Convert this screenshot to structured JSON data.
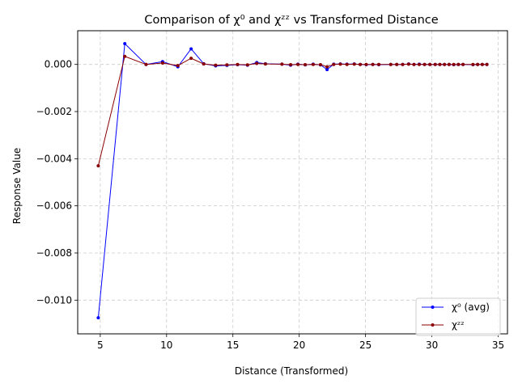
{
  "chart_data": {
    "type": "line",
    "title": "Comparison of χ⁰ and χᶻᶻ vs Transformed Distance",
    "xlabel": "Distance (Transformed)",
    "ylabel": "Response Value",
    "xlim": [
      3.3,
      35.7
    ],
    "ylim": [
      -0.01143,
      0.00143
    ],
    "xticks": [
      5,
      10,
      15,
      20,
      25,
      30,
      35
    ],
    "xtick_labels": [
      "5",
      "10",
      "15",
      "20",
      "25",
      "30",
      "35"
    ],
    "yticks": [
      -0.01,
      -0.008,
      -0.006,
      -0.004,
      -0.002,
      0.0
    ],
    "ytick_labels": [
      "−0.010",
      "−0.008",
      "−0.006",
      "−0.004",
      "−0.002",
      "0.000"
    ],
    "grid": true,
    "legend_position": "lower-right",
    "series": [
      {
        "name": "χ⁰ (avg)",
        "color": "#0000ff",
        "marker_color": "#0000ff",
        "x": [
          4.85,
          6.85,
          8.45,
          9.7,
          10.85,
          11.85,
          12.8,
          13.7,
          14.55,
          15.35,
          16.1,
          16.8,
          17.45,
          18.7,
          19.35,
          19.9,
          20.45,
          21.05,
          21.6,
          22.1,
          22.6,
          23.1,
          23.6,
          24.15,
          24.6,
          25.05,
          25.55,
          26.0,
          26.9,
          27.35,
          27.8,
          28.25,
          28.65,
          29.05,
          29.45,
          29.85,
          30.25,
          30.6,
          30.95,
          31.3,
          31.65,
          32.0,
          32.35,
          33.1,
          33.45,
          33.8,
          34.15
        ],
        "y": [
          -0.01075,
          0.00088,
          0.0,
          0.00012,
          -0.0001,
          0.00066,
          3e-05,
          -6e-05,
          -4e-05,
          -1e-05,
          -3e-05,
          8e-05,
          3e-05,
          1e-05,
          -3e-05,
          1e-05,
          -2e-05,
          1e-05,
          -2e-05,
          -0.00022,
          1e-05,
          2e-05,
          1e-05,
          2e-05,
          0.0,
          -1e-05,
          0.0,
          -1e-05,
          0.0,
          0.0,
          0.0,
          2e-05,
          0.0,
          1e-05,
          0.0,
          0.0,
          0.0,
          0.0,
          0.0,
          0.0,
          -1e-05,
          0.0,
          0.0,
          -1e-05,
          0.0,
          0.0,
          0.0
        ]
      },
      {
        "name": "χᶻᶻ",
        "color": "#8b0000",
        "marker_color": "#8b0000",
        "x": [
          4.85,
          6.85,
          8.45,
          9.7,
          10.85,
          11.85,
          12.8,
          13.7,
          14.55,
          15.35,
          16.1,
          16.8,
          17.45,
          18.7,
          19.35,
          19.9,
          20.45,
          21.05,
          21.6,
          22.1,
          22.6,
          23.1,
          23.6,
          24.15,
          24.6,
          25.05,
          25.55,
          26.0,
          26.9,
          27.35,
          27.8,
          28.25,
          28.65,
          29.05,
          29.45,
          29.85,
          30.25,
          30.6,
          30.95,
          31.3,
          31.65,
          32.0,
          32.35,
          33.1,
          33.45,
          33.8,
          34.15
        ],
        "y": [
          -0.0043,
          0.00034,
          0.0,
          6e-05,
          -5e-05,
          0.00026,
          2e-05,
          -3e-05,
          -2e-05,
          0.0,
          -2e-05,
          4e-05,
          2e-05,
          1e-05,
          -1e-05,
          0.0,
          -1e-05,
          0.0,
          -1e-05,
          -0.0001,
          0.0,
          1e-05,
          0.0,
          1e-05,
          0.0,
          0.0,
          0.0,
          0.0,
          0.0,
          0.0,
          0.0,
          1e-05,
          0.0,
          0.0,
          0.0,
          0.0,
          0.0,
          0.0,
          0.0,
          0.0,
          0.0,
          0.0,
          0.0,
          0.0,
          0.0,
          0.0,
          0.0
        ]
      }
    ]
  }
}
